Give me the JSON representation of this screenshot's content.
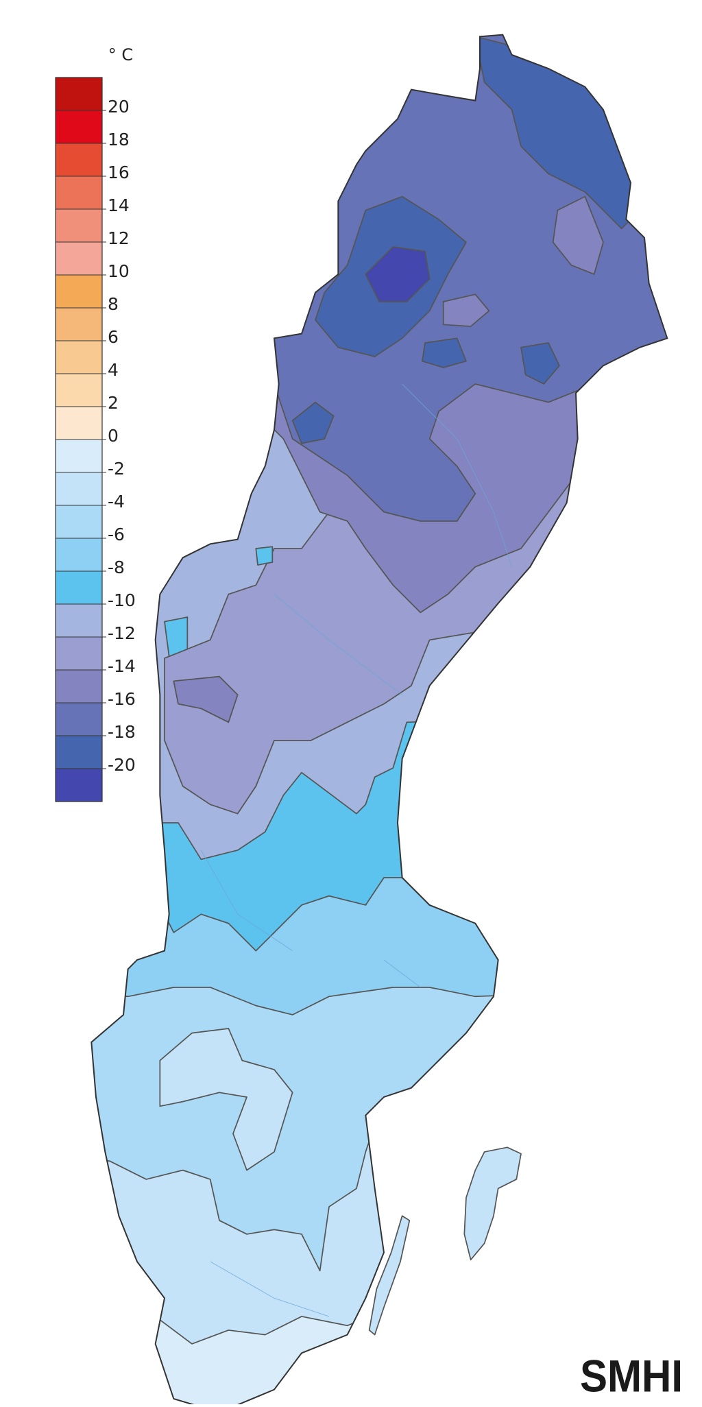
{
  "legend": {
    "unit": "° C",
    "ticks": [
      20,
      18,
      16,
      14,
      12,
      10,
      8,
      6,
      4,
      2,
      0,
      -2,
      -4,
      -6,
      -8,
      -10,
      -12,
      -14,
      -16,
      -18,
      -20
    ],
    "colors": [
      "#c0120f",
      "#e0091a",
      "#e64c31",
      "#ec7357",
      "#f0907a",
      "#f4a699",
      "#f4a957",
      "#f5b879",
      "#f8c990",
      "#fbd9ac",
      "#fde8cf",
      "#d8ecf9",
      "#c4e3f8",
      "#abdaf6",
      "#8dd0f3",
      "#5cc3ef",
      "#a4b5df",
      "#9a9ed0",
      "#8484c1",
      "#6674b7",
      "#4565af",
      "#4347ae"
    ]
  },
  "logo": "SMHI"
}
